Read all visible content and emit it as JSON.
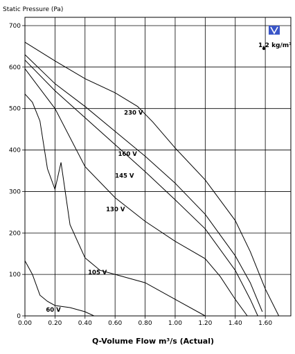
{
  "chart_data": {
    "type": "line",
    "ylabel": "Static Pressure (Pa)",
    "xlabel": "Q-Volume Flow m³/s (Actual)",
    "xlim": [
      0,
      1.77
    ],
    "ylim": [
      0,
      720
    ],
    "x_ticks": [
      "0.00",
      "0.20",
      "0.40",
      "0.60",
      "0.80",
      "1.00",
      "1.20",
      "1.40",
      "1.60"
    ],
    "y_ticks": [
      "0",
      "100",
      "200",
      "300",
      "400",
      "500",
      "600",
      "700"
    ],
    "grid": true,
    "density_note": "1.2 kg/m³",
    "series": [
      {
        "name": "230 V",
        "label_at": [
          0.66,
          485
        ],
        "points": [
          [
            0,
            660
          ],
          [
            0.2,
            615
          ],
          [
            0.4,
            572
          ],
          [
            0.6,
            538
          ],
          [
            0.75,
            505
          ],
          [
            0.85,
            468
          ],
          [
            1.0,
            405
          ],
          [
            1.2,
            328
          ],
          [
            1.4,
            230
          ],
          [
            1.5,
            155
          ],
          [
            1.6,
            65
          ],
          [
            1.69,
            0
          ]
        ]
      },
      {
        "name": "160 V",
        "label_at": [
          0.62,
          386
        ],
        "points": [
          [
            0,
            630
          ],
          [
            0.2,
            560
          ],
          [
            0.4,
            505
          ],
          [
            0.6,
            445
          ],
          [
            0.8,
            385
          ],
          [
            1.0,
            320
          ],
          [
            1.2,
            245
          ],
          [
            1.4,
            145
          ],
          [
            1.5,
            80
          ],
          [
            1.58,
            10
          ]
        ]
      },
      {
        "name": "145 V",
        "label_at": [
          0.6,
          333
        ],
        "points": [
          [
            0,
            617
          ],
          [
            0.2,
            543
          ],
          [
            0.4,
            478
          ],
          [
            0.6,
            413
          ],
          [
            0.8,
            348
          ],
          [
            1.0,
            280
          ],
          [
            1.2,
            210
          ],
          [
            1.4,
            110
          ],
          [
            1.5,
            40
          ],
          [
            1.55,
            0
          ]
        ]
      },
      {
        "name": "130 V",
        "label_at": [
          0.54,
          252
        ],
        "points": [
          [
            0,
            596
          ],
          [
            0.2,
            500
          ],
          [
            0.4,
            360
          ],
          [
            0.6,
            285
          ],
          [
            0.8,
            228
          ],
          [
            1.0,
            180
          ],
          [
            1.2,
            138
          ],
          [
            1.3,
            95
          ],
          [
            1.4,
            40
          ],
          [
            1.48,
            0
          ]
        ]
      },
      {
        "name": "105 V",
        "label_at": [
          0.42,
          100
        ],
        "points": [
          [
            0,
            535
          ],
          [
            0.05,
            515
          ],
          [
            0.1,
            470
          ],
          [
            0.15,
            355
          ],
          [
            0.2,
            305
          ],
          [
            0.24,
            370
          ],
          [
            0.3,
            220
          ],
          [
            0.4,
            140
          ],
          [
            0.5,
            110
          ],
          [
            0.6,
            100
          ],
          [
            0.8,
            80
          ],
          [
            1.0,
            40
          ],
          [
            1.2,
            0
          ]
        ]
      },
      {
        "name": "60 V",
        "label_at": [
          0.14,
          10
        ],
        "points": [
          [
            0,
            133
          ],
          [
            0.05,
            100
          ],
          [
            0.1,
            50
          ],
          [
            0.15,
            35
          ],
          [
            0.2,
            25
          ],
          [
            0.3,
            20
          ],
          [
            0.4,
            10
          ],
          [
            0.46,
            0
          ]
        ]
      }
    ]
  },
  "legend_badge": {
    "icon": "v-logo-icon",
    "color": "#3a56c8"
  }
}
